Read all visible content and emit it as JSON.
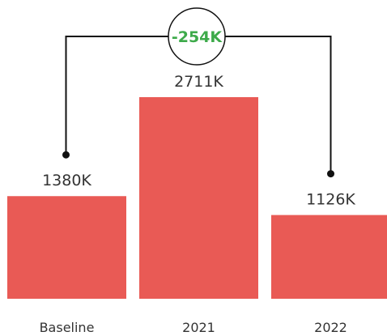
{
  "chart_data": {
    "type": "bar",
    "categories": [
      "Baseline",
      "2021",
      "2022"
    ],
    "values": [
      1380,
      2711,
      1126
    ],
    "value_labels": [
      "1380K",
      "2711K",
      "1126K"
    ],
    "unit_suffix": "K",
    "bar_color": "#E95A55",
    "comparison": {
      "from_category": "Baseline",
      "to_category": "2022",
      "label": "-254K",
      "label_color": "#3DAA4A"
    },
    "title": "",
    "xlabel": "",
    "ylabel": "",
    "ylim": [
      0,
      2711
    ],
    "grid": false,
    "legend": "none"
  }
}
